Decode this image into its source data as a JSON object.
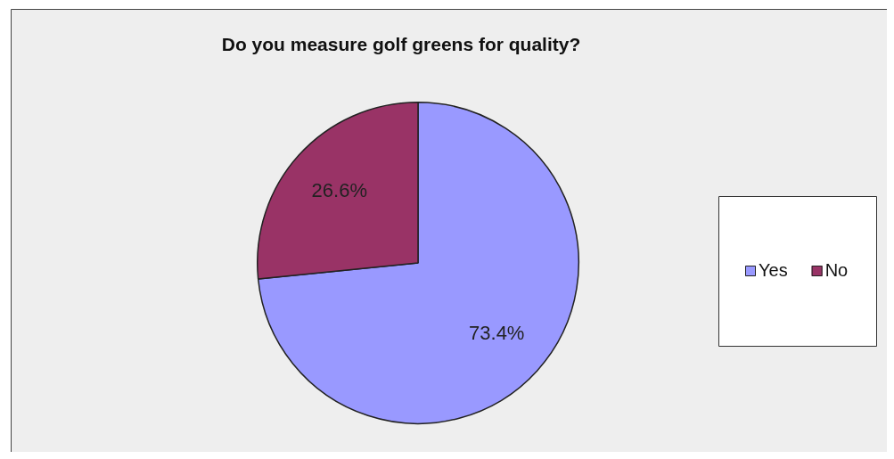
{
  "chart_data": {
    "type": "pie",
    "title": "Do you measure golf greens for quality?",
    "categories": [
      "Yes",
      "No"
    ],
    "values": [
      73.4,
      26.6
    ],
    "colors": [
      "#9999ff",
      "#993366"
    ],
    "value_labels": [
      "73.4%",
      "26.6%"
    ],
    "legend": "right"
  }
}
